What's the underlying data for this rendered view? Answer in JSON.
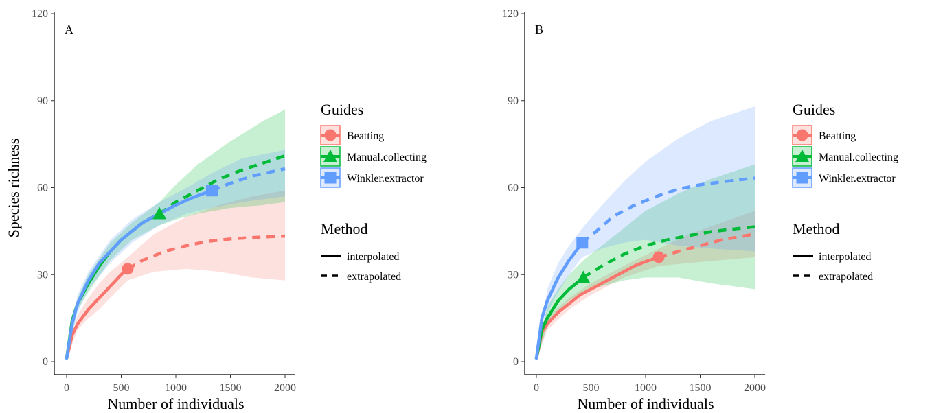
{
  "colors": {
    "Beatting": "#F8766D",
    "Manual.collecting": "#00BA38",
    "Winkler.extractor": "#619CFF"
  },
  "legend": {
    "guides_title": "Guides",
    "method_title": "Method",
    "guides": [
      {
        "label": "Beatting",
        "shape": "circle"
      },
      {
        "label": "Manual.collecting",
        "shape": "triangle"
      },
      {
        "label": "Winkler.extractor",
        "shape": "square"
      }
    ],
    "methods": [
      {
        "label": "interpolated",
        "line": "solid"
      },
      {
        "label": "extrapolated",
        "line": "dashed"
      }
    ]
  },
  "chart_data": [
    {
      "type": "line",
      "panel": "A",
      "xlabel": "Number of individuals",
      "ylabel": "Species richness",
      "xlim": [
        0,
        2000
      ],
      "ylim": [
        0,
        120
      ],
      "xticks": [
        0,
        500,
        1000,
        1500,
        2000
      ],
      "yticks": [
        0,
        30,
        60,
        90,
        120
      ],
      "grid": false,
      "legend_position": "right",
      "series": [
        {
          "name": "Beatting",
          "observed": [
            560,
            32
          ],
          "points": [
            [
              0,
              1
            ],
            [
              50,
              9
            ],
            [
              100,
              13
            ],
            [
              200,
              18
            ],
            [
              300,
              22
            ],
            [
              400,
              26
            ],
            [
              500,
              30
            ],
            [
              560,
              32
            ],
            [
              700,
              35
            ],
            [
              900,
              38
            ],
            [
              1100,
              40
            ],
            [
              1300,
              41.5
            ],
            [
              1500,
              42.3
            ],
            [
              1700,
              42.8
            ],
            [
              2000,
              43.3
            ]
          ],
          "ci_upper": [
            [
              0,
              2
            ],
            [
              100,
              16
            ],
            [
              200,
              22
            ],
            [
              300,
              27
            ],
            [
              400,
              31
            ],
            [
              560,
              36
            ],
            [
              800,
              44
            ],
            [
              1100,
              50
            ],
            [
              1400,
              54
            ],
            [
              1700,
              57
            ],
            [
              2000,
              59
            ]
          ],
          "ci_lower": [
            [
              0,
              0.5
            ],
            [
              100,
              11
            ],
            [
              200,
              15
            ],
            [
              300,
              18
            ],
            [
              400,
              22
            ],
            [
              560,
              28
            ],
            [
              800,
              31
            ],
            [
              1100,
              32
            ],
            [
              1400,
              31
            ],
            [
              1700,
              29
            ],
            [
              2000,
              28
            ]
          ]
        },
        {
          "name": "Manual.collecting",
          "observed": [
            850,
            51
          ],
          "points": [
            [
              0,
              1
            ],
            [
              50,
              14
            ],
            [
              100,
              20
            ],
            [
              200,
              27
            ],
            [
              300,
              33
            ],
            [
              400,
              38
            ],
            [
              500,
              42
            ],
            [
              600,
              45
            ],
            [
              700,
              48
            ],
            [
              850,
              51
            ],
            [
              1000,
              55
            ],
            [
              1200,
              59
            ],
            [
              1400,
              63
            ],
            [
              1600,
              66
            ],
            [
              1800,
              68.5
            ],
            [
              2000,
              71
            ]
          ],
          "ci_upper": [
            [
              0,
              2
            ],
            [
              100,
              22
            ],
            [
              200,
              30
            ],
            [
              400,
              41
            ],
            [
              600,
              48
            ],
            [
              850,
              55
            ],
            [
              1000,
              61
            ],
            [
              1200,
              68
            ],
            [
              1500,
              76
            ],
            [
              1800,
              83
            ],
            [
              2000,
              87
            ]
          ],
          "ci_lower": [
            [
              0,
              0.5
            ],
            [
              100,
              18
            ],
            [
              200,
              24
            ],
            [
              400,
              35
            ],
            [
              600,
              42
            ],
            [
              850,
              47
            ],
            [
              1000,
              49
            ],
            [
              1200,
              51
            ],
            [
              1500,
              53
            ],
            [
              1800,
              54
            ],
            [
              2000,
              55
            ]
          ]
        },
        {
          "name": "Winkler.extractor",
          "observed": [
            1330,
            59
          ],
          "points": [
            [
              0,
              1
            ],
            [
              50,
              13
            ],
            [
              100,
              20
            ],
            [
              200,
              28
            ],
            [
              300,
              34
            ],
            [
              400,
              38
            ],
            [
              500,
              42
            ],
            [
              600,
              45
            ],
            [
              700,
              48
            ],
            [
              850,
              51
            ],
            [
              1000,
              54
            ],
            [
              1150,
              56.5
            ],
            [
              1330,
              59
            ],
            [
              1500,
              61.5
            ],
            [
              1700,
              64
            ],
            [
              2000,
              66.5
            ]
          ],
          "ci_upper": [
            [
              0,
              2
            ],
            [
              100,
              23
            ],
            [
              200,
              31
            ],
            [
              400,
              42
            ],
            [
              600,
              49
            ],
            [
              850,
              55
            ],
            [
              1100,
              60
            ],
            [
              1330,
              65
            ],
            [
              1600,
              70
            ],
            [
              2000,
              73
            ]
          ],
          "ci_lower": [
            [
              0,
              0.5
            ],
            [
              100,
              17
            ],
            [
              200,
              25
            ],
            [
              400,
              34
            ],
            [
              600,
              41
            ],
            [
              850,
              47
            ],
            [
              1100,
              51
            ],
            [
              1330,
              53
            ],
            [
              1600,
              55
            ],
            [
              2000,
              57
            ]
          ]
        }
      ]
    },
    {
      "type": "line",
      "panel": "B",
      "xlabel": "Number of individuals",
      "xlim": [
        0,
        2000
      ],
      "ylim": [
        0,
        120
      ],
      "xticks": [
        0,
        500,
        1000,
        1500,
        2000
      ],
      "yticks": [
        0,
        30,
        60,
        90,
        120
      ],
      "grid": false,
      "legend_position": "right",
      "series": [
        {
          "name": "Beatting",
          "observed": [
            1120,
            36
          ],
          "points": [
            [
              0,
              1
            ],
            [
              50,
              10
            ],
            [
              100,
              13
            ],
            [
              200,
              17
            ],
            [
              300,
              20
            ],
            [
              400,
              23
            ],
            [
              500,
              25
            ],
            [
              600,
              27
            ],
            [
              700,
              29
            ],
            [
              800,
              31
            ],
            [
              900,
              33
            ],
            [
              1000,
              34.5
            ],
            [
              1120,
              36
            ],
            [
              1300,
              38
            ],
            [
              1500,
              40
            ],
            [
              1700,
              42
            ],
            [
              2000,
              44
            ]
          ],
          "ci_upper": [
            [
              0,
              2
            ],
            [
              100,
              15
            ],
            [
              300,
              22
            ],
            [
              500,
              27
            ],
            [
              800,
              33
            ],
            [
              1120,
              39
            ],
            [
              1400,
              44
            ],
            [
              1700,
              48
            ],
            [
              2000,
              52
            ]
          ],
          "ci_lower": [
            [
              0,
              0.5
            ],
            [
              100,
              11
            ],
            [
              300,
              18
            ],
            [
              500,
              23
            ],
            [
              800,
              29
            ],
            [
              1120,
              33
            ],
            [
              1400,
              34
            ],
            [
              1700,
              35
            ],
            [
              2000,
              36
            ]
          ]
        },
        {
          "name": "Manual.collecting",
          "observed": [
            430,
            29
          ],
          "points": [
            [
              0,
              1
            ],
            [
              50,
              11
            ],
            [
              100,
              15
            ],
            [
              200,
              21
            ],
            [
              300,
              25
            ],
            [
              430,
              29
            ],
            [
              600,
              33
            ],
            [
              800,
              37
            ],
            [
              1000,
              40
            ],
            [
              1200,
              42
            ],
            [
              1400,
              43.5
            ],
            [
              1600,
              44.8
            ],
            [
              1800,
              45.7
            ],
            [
              2000,
              46.5
            ]
          ],
          "ci_upper": [
            [
              0,
              2
            ],
            [
              100,
              19
            ],
            [
              200,
              25
            ],
            [
              300,
              30
            ],
            [
              430,
              35
            ],
            [
              600,
              40
            ],
            [
              800,
              46
            ],
            [
              1000,
              52
            ],
            [
              1300,
              58
            ],
            [
              1600,
              63
            ],
            [
              2000,
              68
            ]
          ],
          "ci_lower": [
            [
              0,
              0.5
            ],
            [
              100,
              12
            ],
            [
              200,
              17
            ],
            [
              300,
              21
            ],
            [
              430,
              24
            ],
            [
              600,
              26
            ],
            [
              800,
              28
            ],
            [
              1000,
              29
            ],
            [
              1300,
              29
            ],
            [
              1600,
              27
            ],
            [
              2000,
              25
            ]
          ]
        },
        {
          "name": "Winkler.extractor",
          "observed": [
            420,
            41
          ],
          "points": [
            [
              0,
              1
            ],
            [
              50,
              15
            ],
            [
              100,
              21
            ],
            [
              200,
              29
            ],
            [
              300,
              35
            ],
            [
              420,
              41
            ],
            [
              550,
              45
            ],
            [
              700,
              50
            ],
            [
              900,
              54
            ],
            [
              1100,
              57
            ],
            [
              1300,
              59.5
            ],
            [
              1500,
              61
            ],
            [
              1700,
              62
            ],
            [
              2000,
              63.3
            ]
          ],
          "ci_upper": [
            [
              0,
              2
            ],
            [
              100,
              25
            ],
            [
              200,
              34
            ],
            [
              300,
              40
            ],
            [
              420,
              46
            ],
            [
              600,
              54
            ],
            [
              800,
              62
            ],
            [
              1000,
              69
            ],
            [
              1300,
              77
            ],
            [
              1600,
              83
            ],
            [
              2000,
              88
            ]
          ],
          "ci_lower": [
            [
              0,
              0.5
            ],
            [
              100,
              17
            ],
            [
              200,
              24
            ],
            [
              300,
              30
            ],
            [
              420,
              36
            ],
            [
              600,
              39
            ],
            [
              800,
              41
            ],
            [
              1000,
              42
            ],
            [
              1300,
              40
            ],
            [
              1600,
              39
            ],
            [
              2000,
              38
            ]
          ]
        }
      ]
    }
  ]
}
